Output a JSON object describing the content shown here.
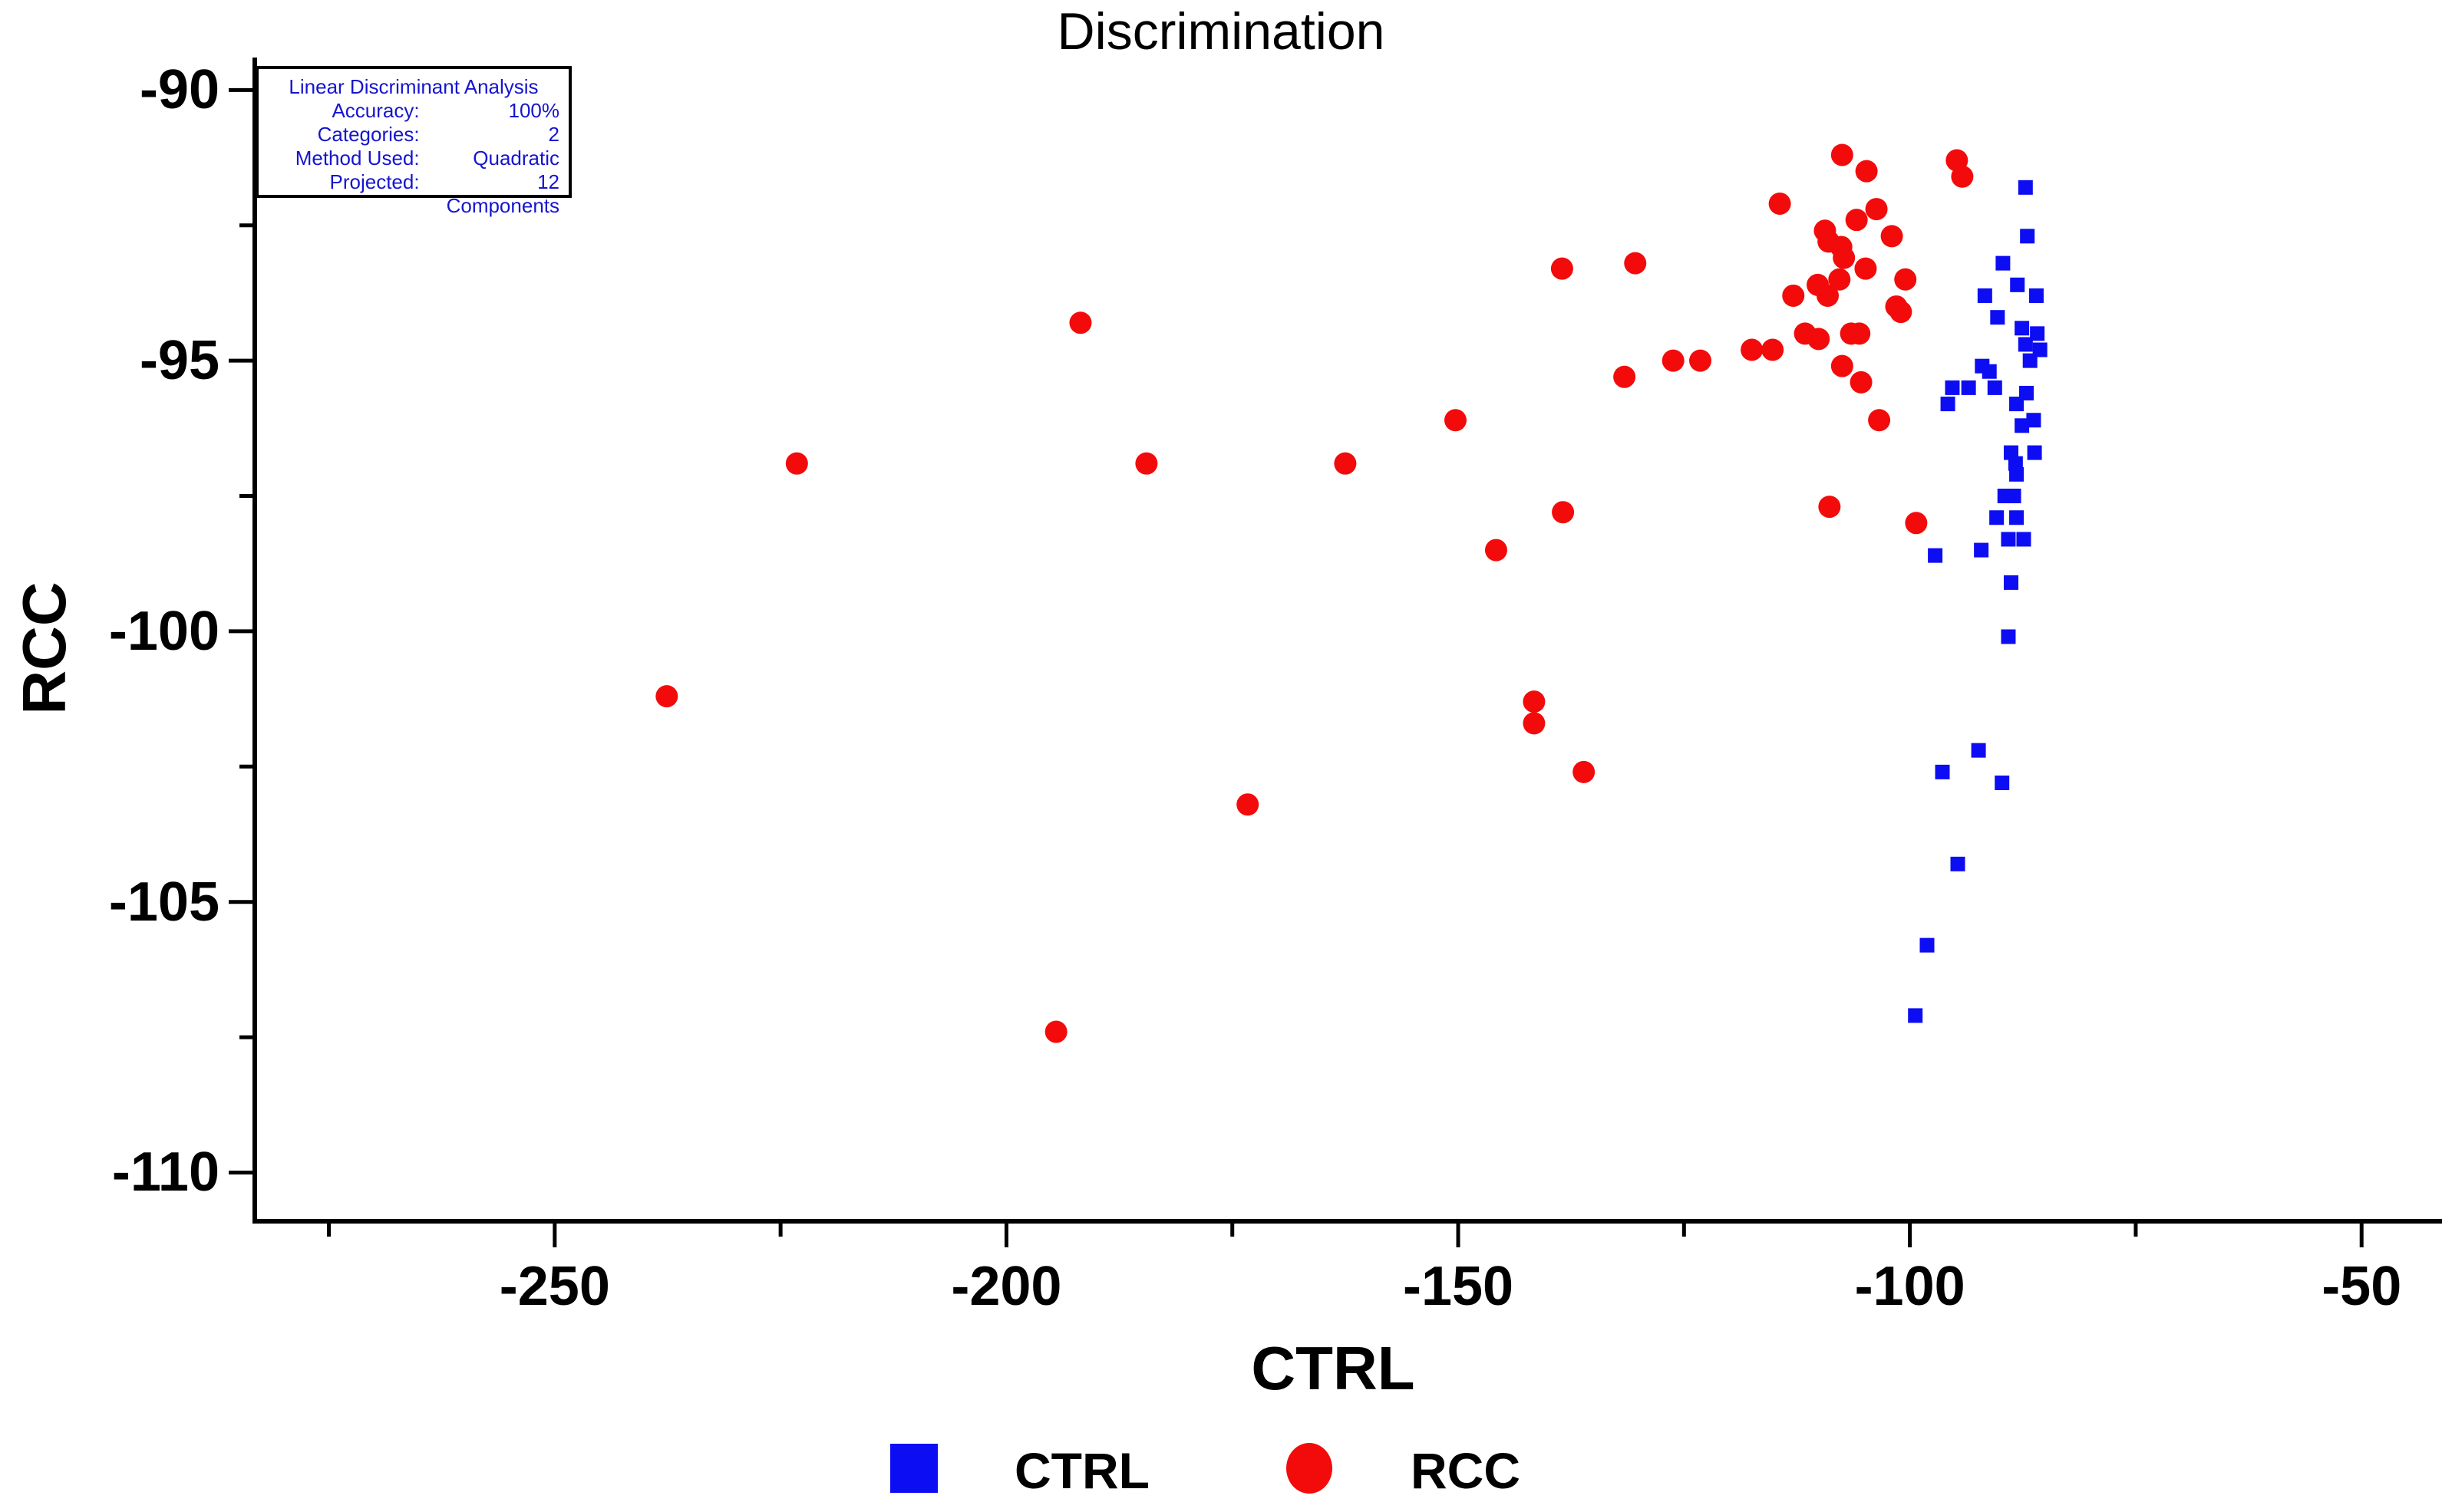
{
  "colors": {
    "ctrl_blue": "#0d0df3",
    "rcc_red": "#f30b0b",
    "axis_black": "#000000",
    "info_text_blue": "#1515cf",
    "background": "#ffffff"
  },
  "annotation": {
    "header": "Linear Discriminant Analysis",
    "rows": [
      {
        "label": "Accuracy:",
        "value": "100%"
      },
      {
        "label": "Categories:",
        "value": "2"
      },
      {
        "label": "Method Used:",
        "value": "Quadratic"
      },
      {
        "label": "Projected:",
        "value": "12 Components"
      }
    ]
  },
  "legend": {
    "ctrl_label": "CTRL",
    "rcc_label": "RCC"
  },
  "chart_data": {
    "type": "scatter",
    "title": "Discrimination",
    "xlabel": "CTRL",
    "ylabel": "RCC",
    "xlim": [
      -283.2,
      -41.1
    ],
    "ylim": [
      -110.9,
      -89.4
    ],
    "x_major_ticks": [
      -250,
      -200,
      -150,
      -100,
      -50
    ],
    "x_minor_ticks": [
      -275,
      -225,
      -175,
      -125,
      -75
    ],
    "y_major_ticks": [
      -90,
      -95,
      -100,
      -105,
      -110
    ],
    "y_minor_ticks": [
      -92.5,
      -97.5,
      -102.5,
      -107.5
    ],
    "grid": false,
    "legend_position": "bottom",
    "series": [
      {
        "name": "CTRL",
        "marker": "square",
        "color": "#0d0df3",
        "points": [
          [
            -87.2,
            -91.8
          ],
          [
            -87.0,
            -92.7
          ],
          [
            -89.7,
            -93.2
          ],
          [
            -88.1,
            -93.6
          ],
          [
            -91.7,
            -93.8
          ],
          [
            -86.0,
            -93.8
          ],
          [
            -90.3,
            -94.2
          ],
          [
            -87.6,
            -94.4
          ],
          [
            -85.9,
            -94.5
          ],
          [
            -87.2,
            -94.7
          ],
          [
            -85.6,
            -94.8
          ],
          [
            -86.7,
            -95.0
          ],
          [
            -92.0,
            -95.1
          ],
          [
            -91.2,
            -95.2
          ],
          [
            -95.3,
            -95.5
          ],
          [
            -93.5,
            -95.5
          ],
          [
            -90.6,
            -95.5
          ],
          [
            -87.1,
            -95.6
          ],
          [
            -95.8,
            -95.8
          ],
          [
            -88.2,
            -95.8
          ],
          [
            -86.3,
            -96.1
          ],
          [
            -87.6,
            -96.2
          ],
          [
            -88.8,
            -96.7
          ],
          [
            -86.2,
            -96.7
          ],
          [
            -88.3,
            -96.9
          ],
          [
            -88.2,
            -97.1
          ],
          [
            -89.5,
            -97.5
          ],
          [
            -88.5,
            -97.5
          ],
          [
            -90.4,
            -97.9
          ],
          [
            -88.2,
            -97.9
          ],
          [
            -89.1,
            -98.3
          ],
          [
            -87.4,
            -98.3
          ],
          [
            -92.1,
            -98.5
          ],
          [
            -97.2,
            -98.6
          ],
          [
            -88.8,
            -99.1
          ],
          [
            -89.1,
            -100.1
          ],
          [
            -92.4,
            -102.2
          ],
          [
            -96.4,
            -102.6
          ],
          [
            -89.8,
            -102.8
          ],
          [
            -94.7,
            -104.3
          ],
          [
            -98.1,
            -105.8
          ],
          [
            -99.4,
            -107.1
          ]
        ]
      },
      {
        "name": "RCC",
        "marker": "circle",
        "color": "#f30b0b",
        "points": [
          [
            -237.6,
            -101.2
          ],
          [
            -223.2,
            -96.9
          ],
          [
            -194.5,
            -107.4
          ],
          [
            -191.8,
            -94.3
          ],
          [
            -184.5,
            -96.9
          ],
          [
            -173.3,
            -103.2
          ],
          [
            -162.5,
            -96.9
          ],
          [
            -150.3,
            -96.1
          ],
          [
            -145.8,
            -98.5
          ],
          [
            -141.6,
            -101.3
          ],
          [
            -141.6,
            -101.7
          ],
          [
            -138.5,
            -93.3
          ],
          [
            -138.4,
            -97.8
          ],
          [
            -136.1,
            -102.6
          ],
          [
            -131.6,
            -95.3
          ],
          [
            -130.4,
            -93.2
          ],
          [
            -126.2,
            -95.0
          ],
          [
            -123.2,
            -95.0
          ],
          [
            -117.5,
            -94.8
          ],
          [
            -115.2,
            -94.8
          ],
          [
            -114.4,
            -92.1
          ],
          [
            -112.9,
            -93.8
          ],
          [
            -111.6,
            -94.5
          ],
          [
            -110.2,
            -93.6
          ],
          [
            -110.1,
            -94.6
          ],
          [
            -109.4,
            -92.6
          ],
          [
            -109.1,
            -93.8
          ],
          [
            -109.0,
            -92.8
          ],
          [
            -108.9,
            -97.7
          ],
          [
            -107.8,
            -93.5
          ],
          [
            -107.6,
            -92.9
          ],
          [
            -107.5,
            -91.2
          ],
          [
            -107.5,
            -95.1
          ],
          [
            -107.3,
            -93.1
          ],
          [
            -106.5,
            -94.5
          ],
          [
            -105.9,
            -92.4
          ],
          [
            -105.6,
            -94.5
          ],
          [
            -105.4,
            -95.4
          ],
          [
            -104.9,
            -93.3
          ],
          [
            -104.8,
            -91.5
          ],
          [
            -103.7,
            -92.2
          ],
          [
            -103.4,
            -96.1
          ],
          [
            -102.0,
            -92.7
          ],
          [
            -101.5,
            -94.0
          ],
          [
            -101.0,
            -94.1
          ],
          [
            -100.5,
            -93.5
          ],
          [
            -99.3,
            -98.0
          ],
          [
            -94.8,
            -91.3
          ],
          [
            -94.2,
            -91.6
          ]
        ]
      }
    ]
  }
}
